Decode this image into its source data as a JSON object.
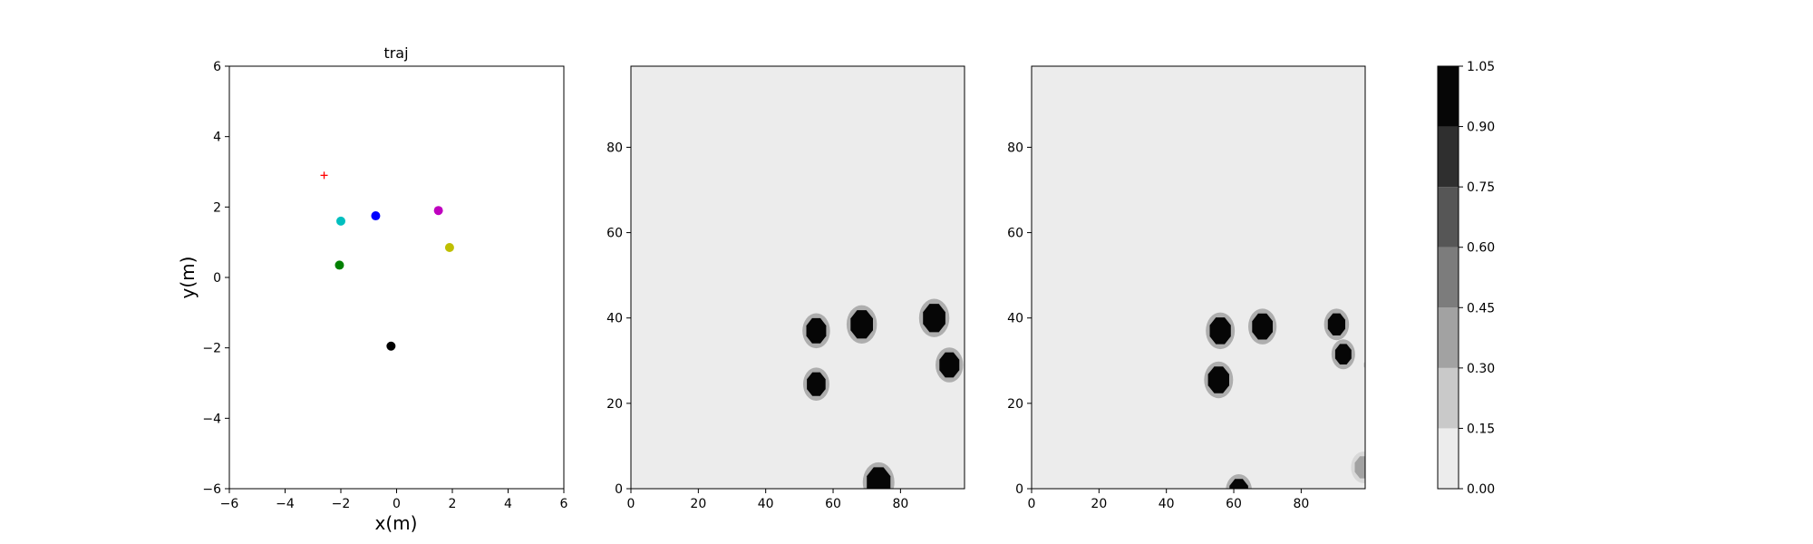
{
  "chart_data": [
    {
      "type": "scatter",
      "title": "traj",
      "xlabel": "x(m)",
      "ylabel": "y(m)",
      "xlim": [
        -6,
        6
      ],
      "ylim": [
        -6,
        6
      ],
      "xticks": [
        "−6",
        "−4",
        "−2",
        "0",
        "2",
        "4",
        "6"
      ],
      "yticks": [
        "−6",
        "−4",
        "−2",
        "0",
        "2",
        "4",
        "6"
      ],
      "grid": false,
      "points": [
        {
          "x": -2.6,
          "y": 2.9,
          "color": "#ff0000",
          "marker": "plus"
        },
        {
          "x": -2.0,
          "y": 1.6,
          "color": "#00bfbf",
          "marker": "circle"
        },
        {
          "x": -0.75,
          "y": 1.75,
          "color": "#0000ff",
          "marker": "circle"
        },
        {
          "x": 1.5,
          "y": 1.9,
          "color": "#bf00bf",
          "marker": "circle"
        },
        {
          "x": 1.9,
          "y": 0.85,
          "color": "#bfbf00",
          "marker": "circle"
        },
        {
          "x": -2.05,
          "y": 0.35,
          "color": "#008000",
          "marker": "circle"
        },
        {
          "x": -0.2,
          "y": -1.95,
          "color": "#000000",
          "marker": "circle"
        }
      ]
    },
    {
      "type": "heatmap",
      "title": "",
      "xlim": [
        0,
        99
      ],
      "ylim": [
        0,
        99
      ],
      "xticks": [
        "0",
        "20",
        "40",
        "60",
        "80"
      ],
      "yticks": [
        "0",
        "20",
        "40",
        "60",
        "80"
      ],
      "background_value": 0.05,
      "blobs": [
        {
          "x": 55,
          "y": 37,
          "r": 3.2,
          "value": 1.0
        },
        {
          "x": 55,
          "y": 24.5,
          "r": 3.0,
          "value": 1.0
        },
        {
          "x": 68.5,
          "y": 38.5,
          "r": 3.6,
          "value": 1.0
        },
        {
          "x": 90,
          "y": 40,
          "r": 3.6,
          "value": 1.0
        },
        {
          "x": 94.5,
          "y": 29,
          "r": 3.2,
          "value": 1.0
        },
        {
          "x": 73.5,
          "y": 1.5,
          "r": 3.8,
          "value": 1.0
        }
      ]
    },
    {
      "type": "heatmap",
      "title": "",
      "xlim": [
        0,
        99
      ],
      "ylim": [
        0,
        99
      ],
      "xticks": [
        "0",
        "20",
        "40",
        "60",
        "80"
      ],
      "yticks": [
        "0",
        "20",
        "40",
        "60",
        "80"
      ],
      "background_value": 0.05,
      "blobs": [
        {
          "x": 56,
          "y": 37,
          "r": 3.4,
          "value": 1.0
        },
        {
          "x": 55.5,
          "y": 25.5,
          "r": 3.4,
          "value": 1.0
        },
        {
          "x": 68.5,
          "y": 38,
          "r": 3.3,
          "value": 1.0
        },
        {
          "x": 90.5,
          "y": 38.5,
          "r": 2.8,
          "value": 1.0
        },
        {
          "x": 92.5,
          "y": 31.5,
          "r": 2.6,
          "value": 0.9
        },
        {
          "x": 61.5,
          "y": -0.5,
          "r": 3.0,
          "value": 0.9
        },
        {
          "x": 98.5,
          "y": 5,
          "r": 2.8,
          "value": 0.35
        },
        {
          "x": 99.5,
          "y": 29,
          "r": 1.0,
          "value": 0.25
        }
      ]
    },
    {
      "type": "colorbar",
      "levels": [
        "0.00",
        "0.15",
        "0.30",
        "0.45",
        "0.60",
        "0.75",
        "0.90",
        "1.05"
      ],
      "colors": [
        "#ececec",
        "#c9c9c9",
        "#a2a2a2",
        "#7c7c7c",
        "#565656",
        "#2f2f2f",
        "#060606"
      ]
    }
  ]
}
